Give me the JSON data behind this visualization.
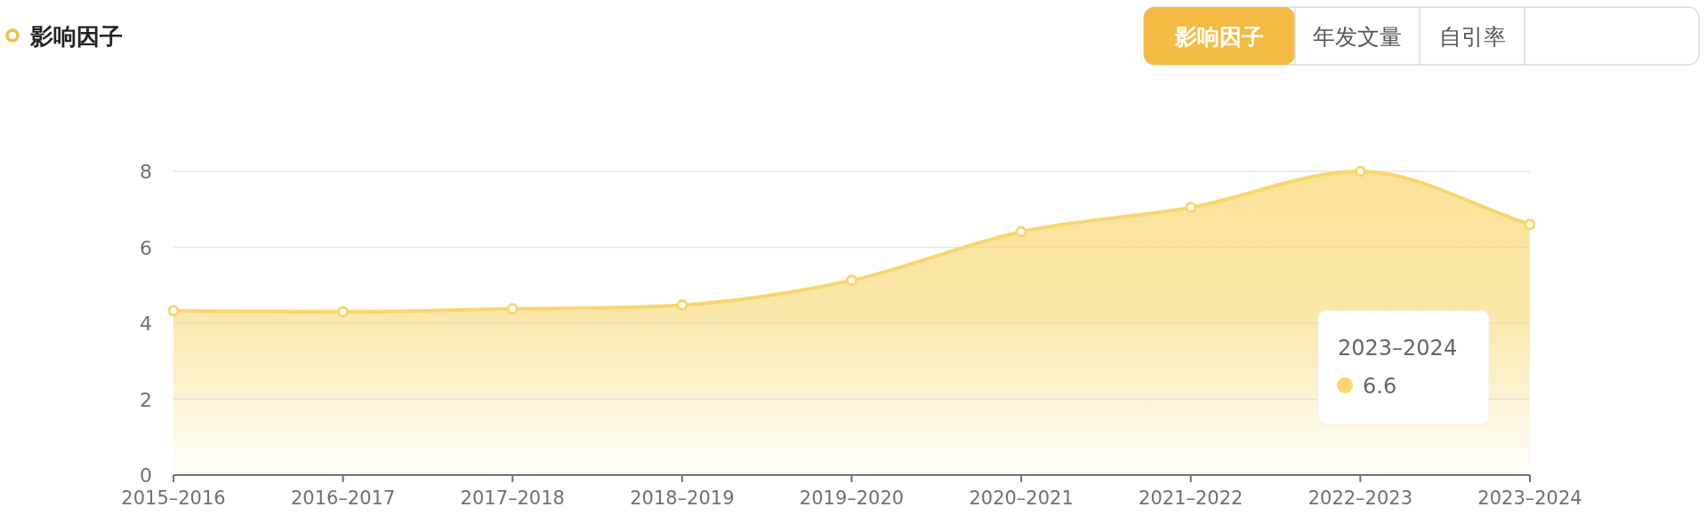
{
  "chart_data": {
    "type": "area",
    "title": "影响因子",
    "categories": [
      "2015–2016",
      "2016–2017",
      "2017–2018",
      "2018–2019",
      "2019–2020",
      "2020–2021",
      "2021–2022",
      "2022–2023",
      "2023–2024"
    ],
    "values": [
      4.33,
      4.3,
      4.38,
      4.48,
      5.13,
      6.41,
      7.05,
      8.0,
      6.6
    ],
    "color": "#f8d66d",
    "ylim": [
      0,
      8
    ],
    "yticks": [
      0,
      2,
      4,
      6,
      8
    ],
    "grid": "y",
    "marker": "circle",
    "annotations": [
      "影响因子",
      "年发文量",
      "自引率",
      "2023–2024",
      "6.6"
    ]
  }
}
